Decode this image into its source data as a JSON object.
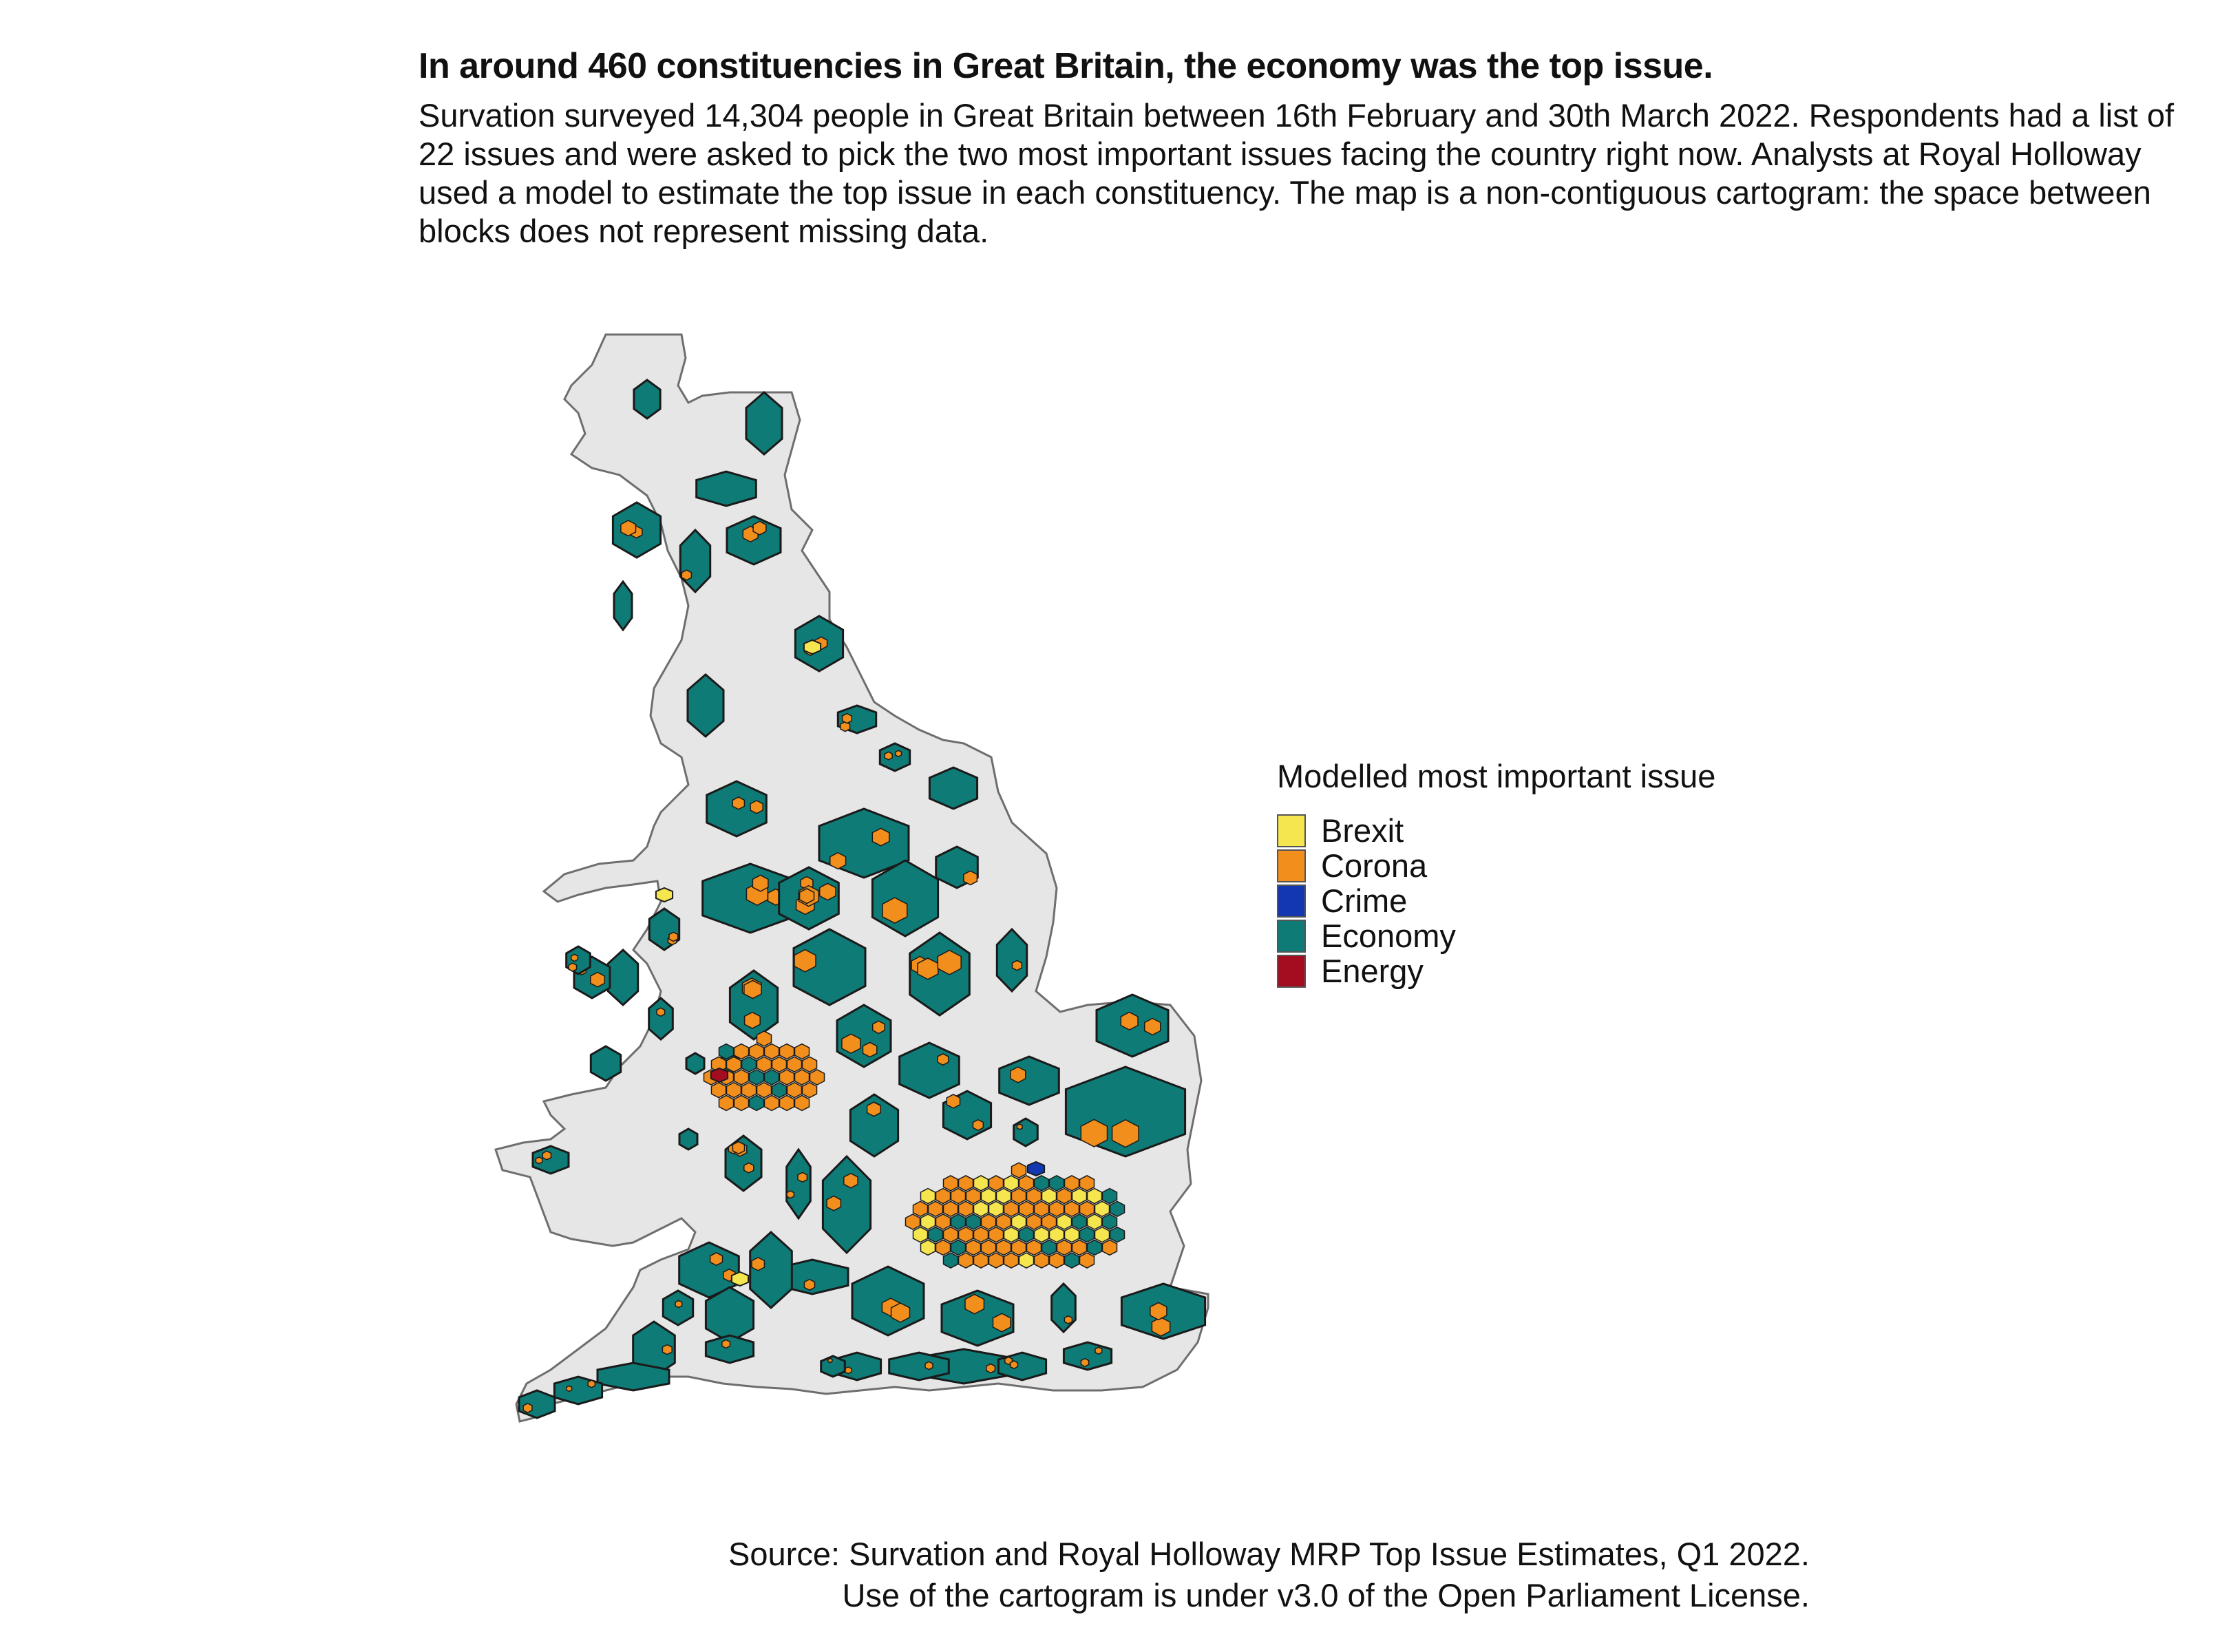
{
  "title": "In around 460 constituencies in Great Britain, the economy was the top issue.",
  "subtitle": "Survation surveyed 14,304 people in Great Britain between 16th February and 30th March 2022. Respondents had a list of 22 issues and were asked to pick the two most important issues facing the country right now. Analysts at Royal Holloway used a model to estimate the top issue in each constituency. The map is a non-contiguous cartogram: the space between blocks does not represent missing data.",
  "legend": {
    "title": "Modelled most important issue",
    "items": [
      {
        "label": "Brexit",
        "color": "#f5e54e"
      },
      {
        "label": "Corona",
        "color": "#f28e1c"
      },
      {
        "label": "Crime",
        "color": "#1237b0"
      },
      {
        "label": "Economy",
        "color": "#0f7b76"
      },
      {
        "label": "Energy",
        "color": "#a30d1f"
      }
    ]
  },
  "source": {
    "line1": "Source: Survation and Royal Holloway MRP Top Issue Estimates, Q1 2022.",
    "line2": "Use of the cartogram is under v3.0 of the Open Parliament License."
  },
  "colors": {
    "land": "#e6e6e6",
    "land_border": "#6e6e6e",
    "block_border": "#1a1a1a"
  }
}
